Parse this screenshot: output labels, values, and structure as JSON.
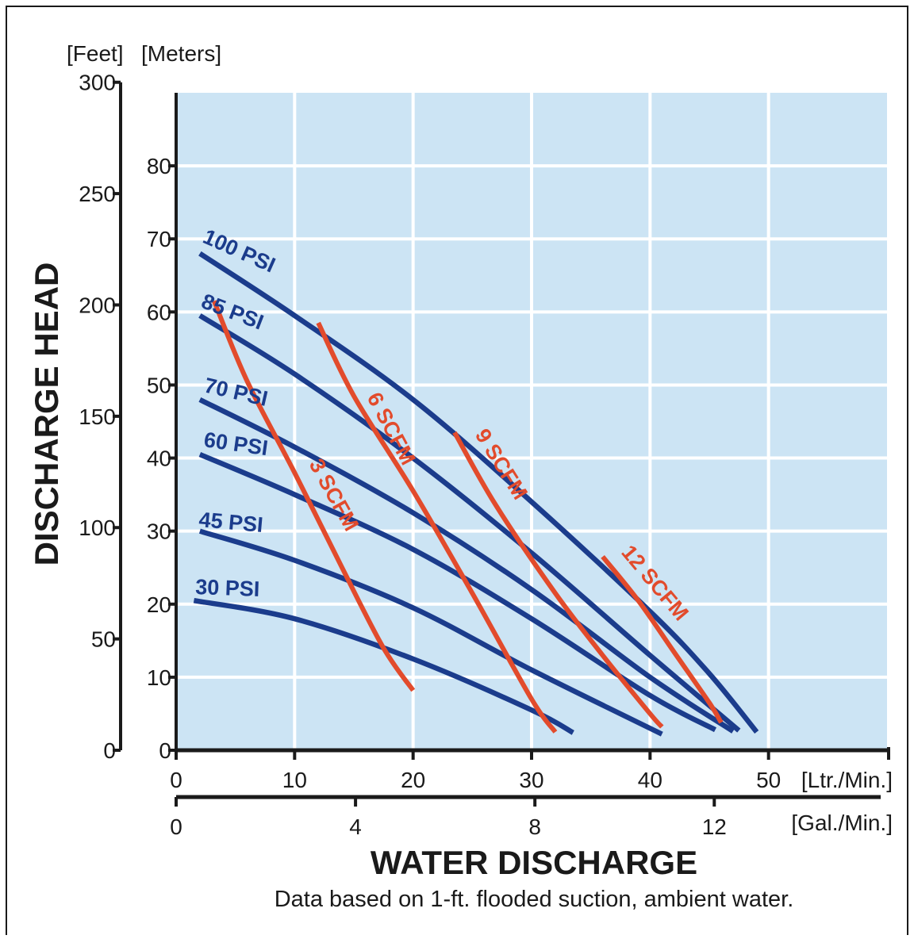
{
  "chart_data": {
    "type": "line",
    "title": "",
    "ylabel": "DISCHARGE HEAD",
    "xlabel": "WATER DISCHARGE",
    "footnote": "Data based on 1-ft. flooded suction, ambient water.",
    "y_units": {
      "feet": "[Feet]",
      "meters": "[Meters]"
    },
    "x_units": {
      "lpm": "[Ltr./Min.]",
      "gpm": "[Gal./Min.]"
    },
    "xlim": [
      0,
      60
    ],
    "ylim": [
      0,
      90
    ],
    "x_ticks_lpm": [
      "0",
      "10",
      "20",
      "30",
      "40",
      "50"
    ],
    "x_ticks_gpm": [
      "0",
      "4",
      "8",
      "12"
    ],
    "y_ticks_meters": [
      "0",
      "10",
      "20",
      "30",
      "40",
      "50",
      "60",
      "70",
      "80"
    ],
    "y_ticks_feet": [
      "0",
      "50",
      "100",
      "150",
      "200",
      "250",
      "300"
    ],
    "grid": true,
    "colors": {
      "background": "#cce4f4",
      "grid": "#ffffff",
      "psi_curve": "#1b3c8c",
      "scfm_curve": "#e24b2c",
      "axis": "#1a1a1a"
    },
    "series": [
      {
        "name": "100 PSI",
        "group": "pressure",
        "x": [
          2,
          10,
          20,
          30,
          40,
          45,
          49
        ],
        "y": [
          68,
          59.5,
          48,
          34,
          19,
          10.5,
          2.5
        ]
      },
      {
        "name": "85 PSI",
        "group": "pressure",
        "x": [
          2,
          10,
          20,
          30,
          40,
          47.5
        ],
        "y": [
          59.5,
          51.5,
          40,
          27,
          13,
          2.7
        ]
      },
      {
        "name": "70 PSI",
        "group": "pressure",
        "x": [
          2,
          10,
          20,
          30,
          40,
          47
        ],
        "y": [
          48,
          41.5,
          32.5,
          22,
          10,
          2.6
        ]
      },
      {
        "name": "60 PSI",
        "group": "pressure",
        "x": [
          2,
          10,
          20,
          30,
          40,
          45.5
        ],
        "y": [
          40.5,
          35,
          27.5,
          18,
          7.5,
          2.8
        ]
      },
      {
        "name": "45 PSI",
        "group": "pressure",
        "x": [
          2,
          10,
          20,
          30,
          41
        ],
        "y": [
          30,
          26,
          19.5,
          11,
          2.2
        ]
      },
      {
        "name": "30 PSI",
        "group": "pressure",
        "x": [
          1.5,
          10,
          20,
          30,
          33.5
        ],
        "y": [
          20.5,
          18,
          12.5,
          5.5,
          2.4
        ]
      },
      {
        "name": "3 SCFM",
        "group": "air",
        "x": [
          3.2,
          6,
          10,
          14,
          17.5,
          20
        ],
        "y": [
          61.5,
          50.5,
          38,
          25,
          14,
          8.2
        ]
      },
      {
        "name": "6 SCFM",
        "group": "air",
        "x": [
          12,
          15,
          20,
          25,
          30,
          32
        ],
        "y": [
          58.5,
          48.5,
          35.5,
          21.5,
          7,
          2.5
        ]
      },
      {
        "name": "9 SCFM",
        "group": "air",
        "x": [
          23.5,
          27,
          32,
          36,
          40,
          41
        ],
        "y": [
          43.5,
          33.5,
          21.5,
          13,
          5,
          3.2
        ]
      },
      {
        "name": "12 SCFM",
        "group": "air",
        "x": [
          36,
          39,
          42,
          45,
          46
        ],
        "y": [
          26.5,
          20.5,
          13.5,
          6.5,
          3.8
        ]
      }
    ],
    "curve_labels": {
      "100 PSI": "100 PSI",
      "85 PSI": "85 PSI",
      "70 PSI": "70 PSI",
      "60 PSI": "60 PSI",
      "45 PSI": "45 PSI",
      "30 PSI": "30 PSI",
      "3 SCFM": "3 SCFM",
      "6 SCFM": "6 SCFM",
      "9 SCFM": "9 SCFM",
      "12 SCFM": "12 SCFM"
    }
  }
}
